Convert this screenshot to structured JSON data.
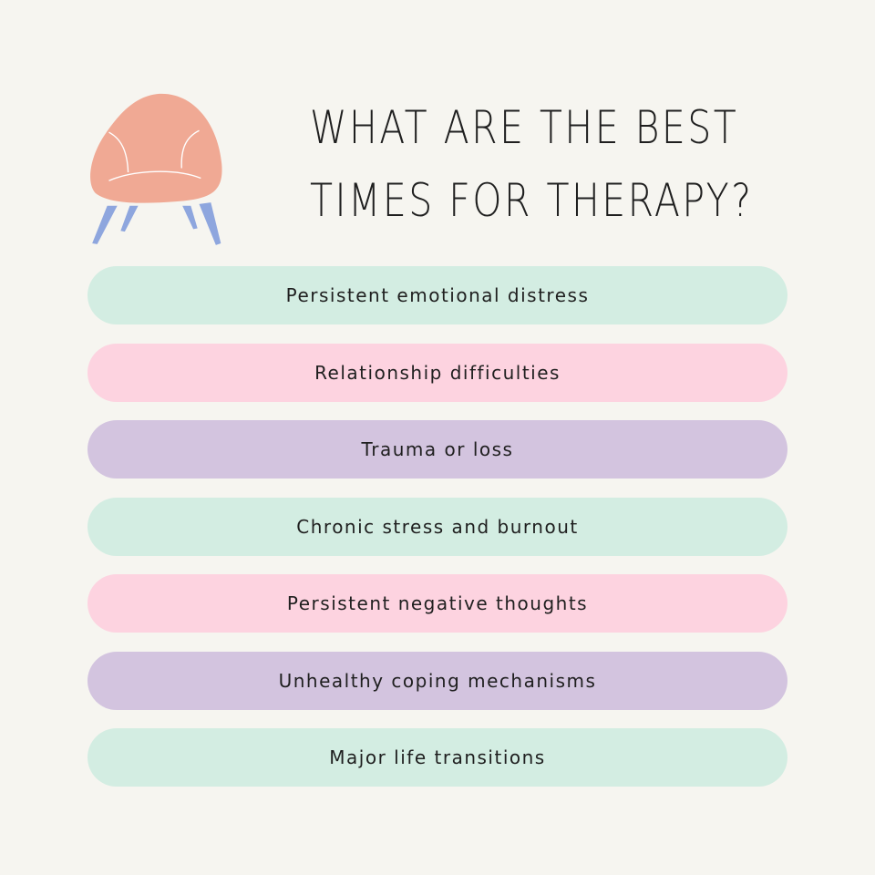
{
  "title": {
    "line1": "What are the best",
    "line2": "times for therapy?"
  },
  "icon": "armchair-illustration",
  "colors": {
    "background": "#f6f5f0",
    "mint": "#d3ede2",
    "pink": "#fdd3e0",
    "lavender": "#d3c4df",
    "chair": "#f0a994",
    "legs": "#8ea6de"
  },
  "items": [
    {
      "label": "Persistent emotional distress",
      "color": "#d3ede2"
    },
    {
      "label": "Relationship difficulties",
      "color": "#fdd3e0"
    },
    {
      "label": "Trauma or loss",
      "color": "#d3c4df"
    },
    {
      "label": "Chronic stress and burnout",
      "color": "#d3ede2"
    },
    {
      "label": "Persistent negative thoughts",
      "color": "#fdd3e0"
    },
    {
      "label": "Unhealthy coping mechanisms",
      "color": "#d3c4df"
    },
    {
      "label": "Major life transitions",
      "color": "#d3ede2"
    }
  ]
}
